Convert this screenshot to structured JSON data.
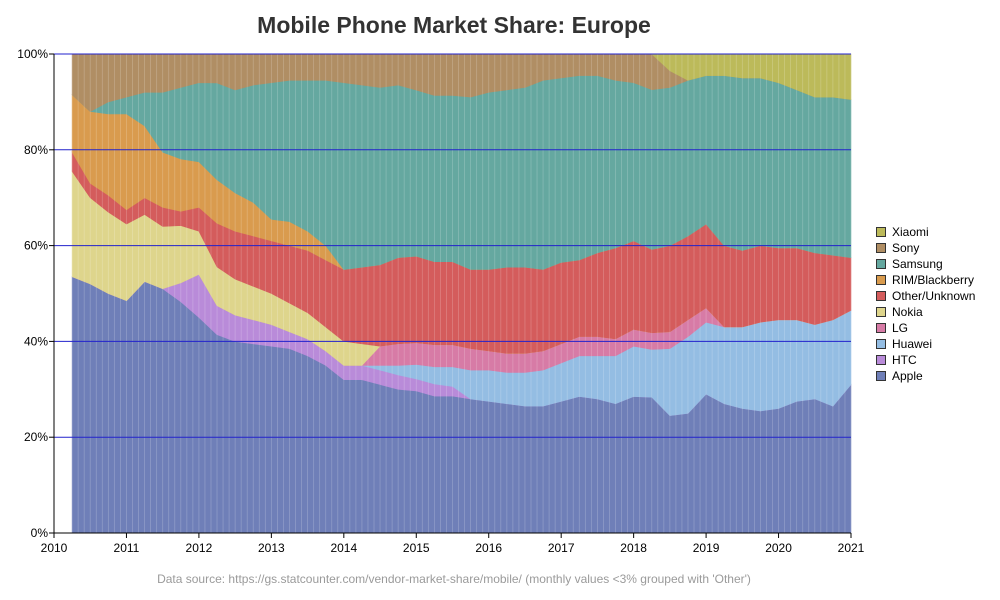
{
  "title": "Mobile Phone Market Share: Europe",
  "footnote": "Data source: https://gs.statcounter.com/vendor-market-share/mobile/ (monthly values <3% grouped with 'Other')",
  "chart_data": {
    "type": "area",
    "subtype": "stacked-100-percent",
    "title": "Mobile Phone Market Share: Europe",
    "xlabel": "",
    "ylabel": "",
    "xlim": [
      2010,
      2021
    ],
    "ylim": [
      0,
      100
    ],
    "x_ticks": [
      "2010",
      "2011",
      "2012",
      "2013",
      "2014",
      "2015",
      "2016",
      "2017",
      "2018",
      "2019",
      "2020",
      "2021"
    ],
    "y_ticks": [
      "0%",
      "20%",
      "40%",
      "60%",
      "80%",
      "100%"
    ],
    "grid": "horizontal",
    "legend_position": "right",
    "x": [
      2010.25,
      2010.5,
      2010.75,
      2011.0,
      2011.25,
      2011.5,
      2011.75,
      2012.0,
      2012.25,
      2012.5,
      2012.75,
      2013.0,
      2013.25,
      2013.5,
      2013.75,
      2014.0,
      2014.25,
      2014.5,
      2014.75,
      2015.0,
      2015.25,
      2015.5,
      2015.75,
      2016.0,
      2016.25,
      2016.5,
      2016.75,
      2017.0,
      2017.25,
      2017.5,
      2017.75,
      2018.0,
      2018.25,
      2018.5,
      2018.75,
      2019.0,
      2019.25,
      2019.5,
      2019.75,
      2020.0,
      2020.25,
      2020.5,
      2020.75,
      2021.0
    ],
    "series": [
      {
        "name": "Apple",
        "color": "#6f7fb8",
        "values": [
          53.5,
          52,
          50,
          48.5,
          52.5,
          51,
          48.5,
          45,
          41,
          40,
          39.5,
          39,
          38.5,
          37,
          35,
          32,
          32,
          31,
          30,
          29.5,
          28,
          28,
          28,
          27.5,
          27,
          26.5,
          26.5,
          27.5,
          28.5,
          28,
          27,
          28.5,
          28.5,
          24.5,
          25,
          29,
          27,
          26,
          25.5,
          26,
          27.5,
          28,
          26.5,
          31
        ]
      },
      {
        "name": "HTC",
        "color": "#b98bd9",
        "values": [
          0,
          0,
          0,
          0,
          0,
          0,
          4,
          9,
          6,
          5.5,
          5,
          4.5,
          3.5,
          3.5,
          3,
          3,
          3,
          3,
          3,
          2.5,
          2.5,
          2,
          0,
          0,
          0,
          0,
          0,
          0,
          0,
          0,
          0,
          0,
          0,
          0,
          0,
          0,
          0,
          0,
          0,
          0,
          0,
          0,
          0,
          0
        ]
      },
      {
        "name": "Huawei",
        "color": "#94bde3",
        "values": [
          0,
          0,
          0,
          0,
          0,
          0,
          0,
          0,
          0,
          0,
          0,
          0,
          0,
          0,
          0,
          0,
          0,
          1,
          2,
          3,
          3.5,
          4,
          6,
          6.5,
          6.5,
          7,
          7.5,
          8,
          8.5,
          9,
          10,
          10.5,
          10,
          14,
          16,
          15,
          16,
          17,
          18.5,
          18.5,
          17,
          15.5,
          18,
          15.5
        ]
      },
      {
        "name": "LG",
        "color": "#d77ba6",
        "values": [
          0,
          0,
          0,
          0,
          0,
          0,
          0,
          0,
          0,
          0,
          0,
          0,
          0,
          0,
          0,
          0,
          0,
          4,
          4.5,
          4.5,
          4.5,
          4.5,
          4.5,
          4,
          4,
          4,
          4,
          4,
          4,
          4,
          3.5,
          3.5,
          3.5,
          3.5,
          3.5,
          3,
          0,
          0,
          0,
          0,
          0,
          0,
          0,
          0
        ]
      },
      {
        "name": "Nokia",
        "color": "#ded58c",
        "values": [
          22,
          18,
          17,
          16,
          14,
          13,
          12,
          9,
          8,
          7.5,
          7,
          6.5,
          6,
          5.5,
          5,
          5,
          4.5,
          0,
          0,
          0,
          0,
          0,
          0,
          0,
          0,
          0,
          0,
          0,
          0,
          0,
          0,
          0,
          0,
          0,
          0,
          0,
          0,
          0,
          0,
          0,
          0,
          0,
          0,
          0
        ]
      },
      {
        "name": "Other/Unknown",
        "color": "#d45c5c",
        "values": [
          4,
          3,
          3.5,
          3,
          3.5,
          4,
          3,
          5,
          9,
          10,
          10.5,
          11,
          12,
          13,
          14,
          15,
          16,
          17,
          18,
          18,
          17,
          17,
          16.5,
          17,
          18,
          18,
          17,
          17,
          16,
          17.5,
          19,
          18.5,
          17.5,
          18,
          17.5,
          17.5,
          17,
          16,
          16,
          15,
          15,
          15,
          13.5,
          11
        ]
      },
      {
        "name": "RIM/Blackberry",
        "color": "#d99b4e",
        "values": [
          12,
          15,
          17,
          20,
          15,
          11.5,
          11,
          9.5,
          9,
          8,
          7,
          4.5,
          5,
          4,
          3,
          0,
          0,
          0,
          0,
          0,
          0,
          0,
          0,
          0,
          0,
          0,
          0,
          0,
          0,
          0,
          0,
          0,
          0,
          0,
          0,
          0,
          0,
          0,
          0,
          0,
          0,
          0,
          0,
          0
        ]
      },
      {
        "name": "Samsung",
        "color": "#65a8a0",
        "values": [
          0,
          0,
          2.5,
          3.5,
          7,
          12.5,
          15,
          16.5,
          20,
          21.5,
          24.5,
          28.5,
          29.5,
          31.5,
          34.5,
          39,
          38,
          37,
          36,
          34.5,
          34,
          34,
          36,
          37,
          37,
          37.5,
          39.5,
          38.5,
          38.5,
          37,
          35,
          33,
          33.5,
          33,
          32.5,
          31,
          35.5,
          36,
          35,
          34.5,
          33,
          32.5,
          33,
          33
        ]
      },
      {
        "name": "Sony",
        "color": "#b08e64",
        "values": [
          8.5,
          12,
          10,
          9,
          8,
          8,
          7,
          6,
          6,
          7.5,
          6.5,
          6,
          5.5,
          5.5,
          5.5,
          6,
          6.5,
          7,
          6.5,
          7.5,
          8.5,
          8.5,
          9,
          8,
          7.5,
          7,
          5.5,
          5,
          4.5,
          4.5,
          5.5,
          6,
          7.5,
          3.5,
          0,
          0,
          0,
          0,
          0,
          0,
          0,
          0,
          0,
          0
        ]
      },
      {
        "name": "Xiaomi",
        "color": "#bcba5a",
        "values": [
          0,
          0,
          0,
          0,
          0,
          0,
          0,
          0,
          0,
          0,
          0,
          0,
          0,
          0,
          0,
          0,
          0,
          0,
          0,
          0,
          0,
          0,
          0,
          0,
          0,
          0,
          0,
          0,
          0,
          0,
          0,
          0,
          0,
          3.5,
          5.5,
          4.5,
          4.5,
          5,
          5,
          6,
          7.5,
          9,
          9,
          9.5
        ]
      }
    ]
  }
}
